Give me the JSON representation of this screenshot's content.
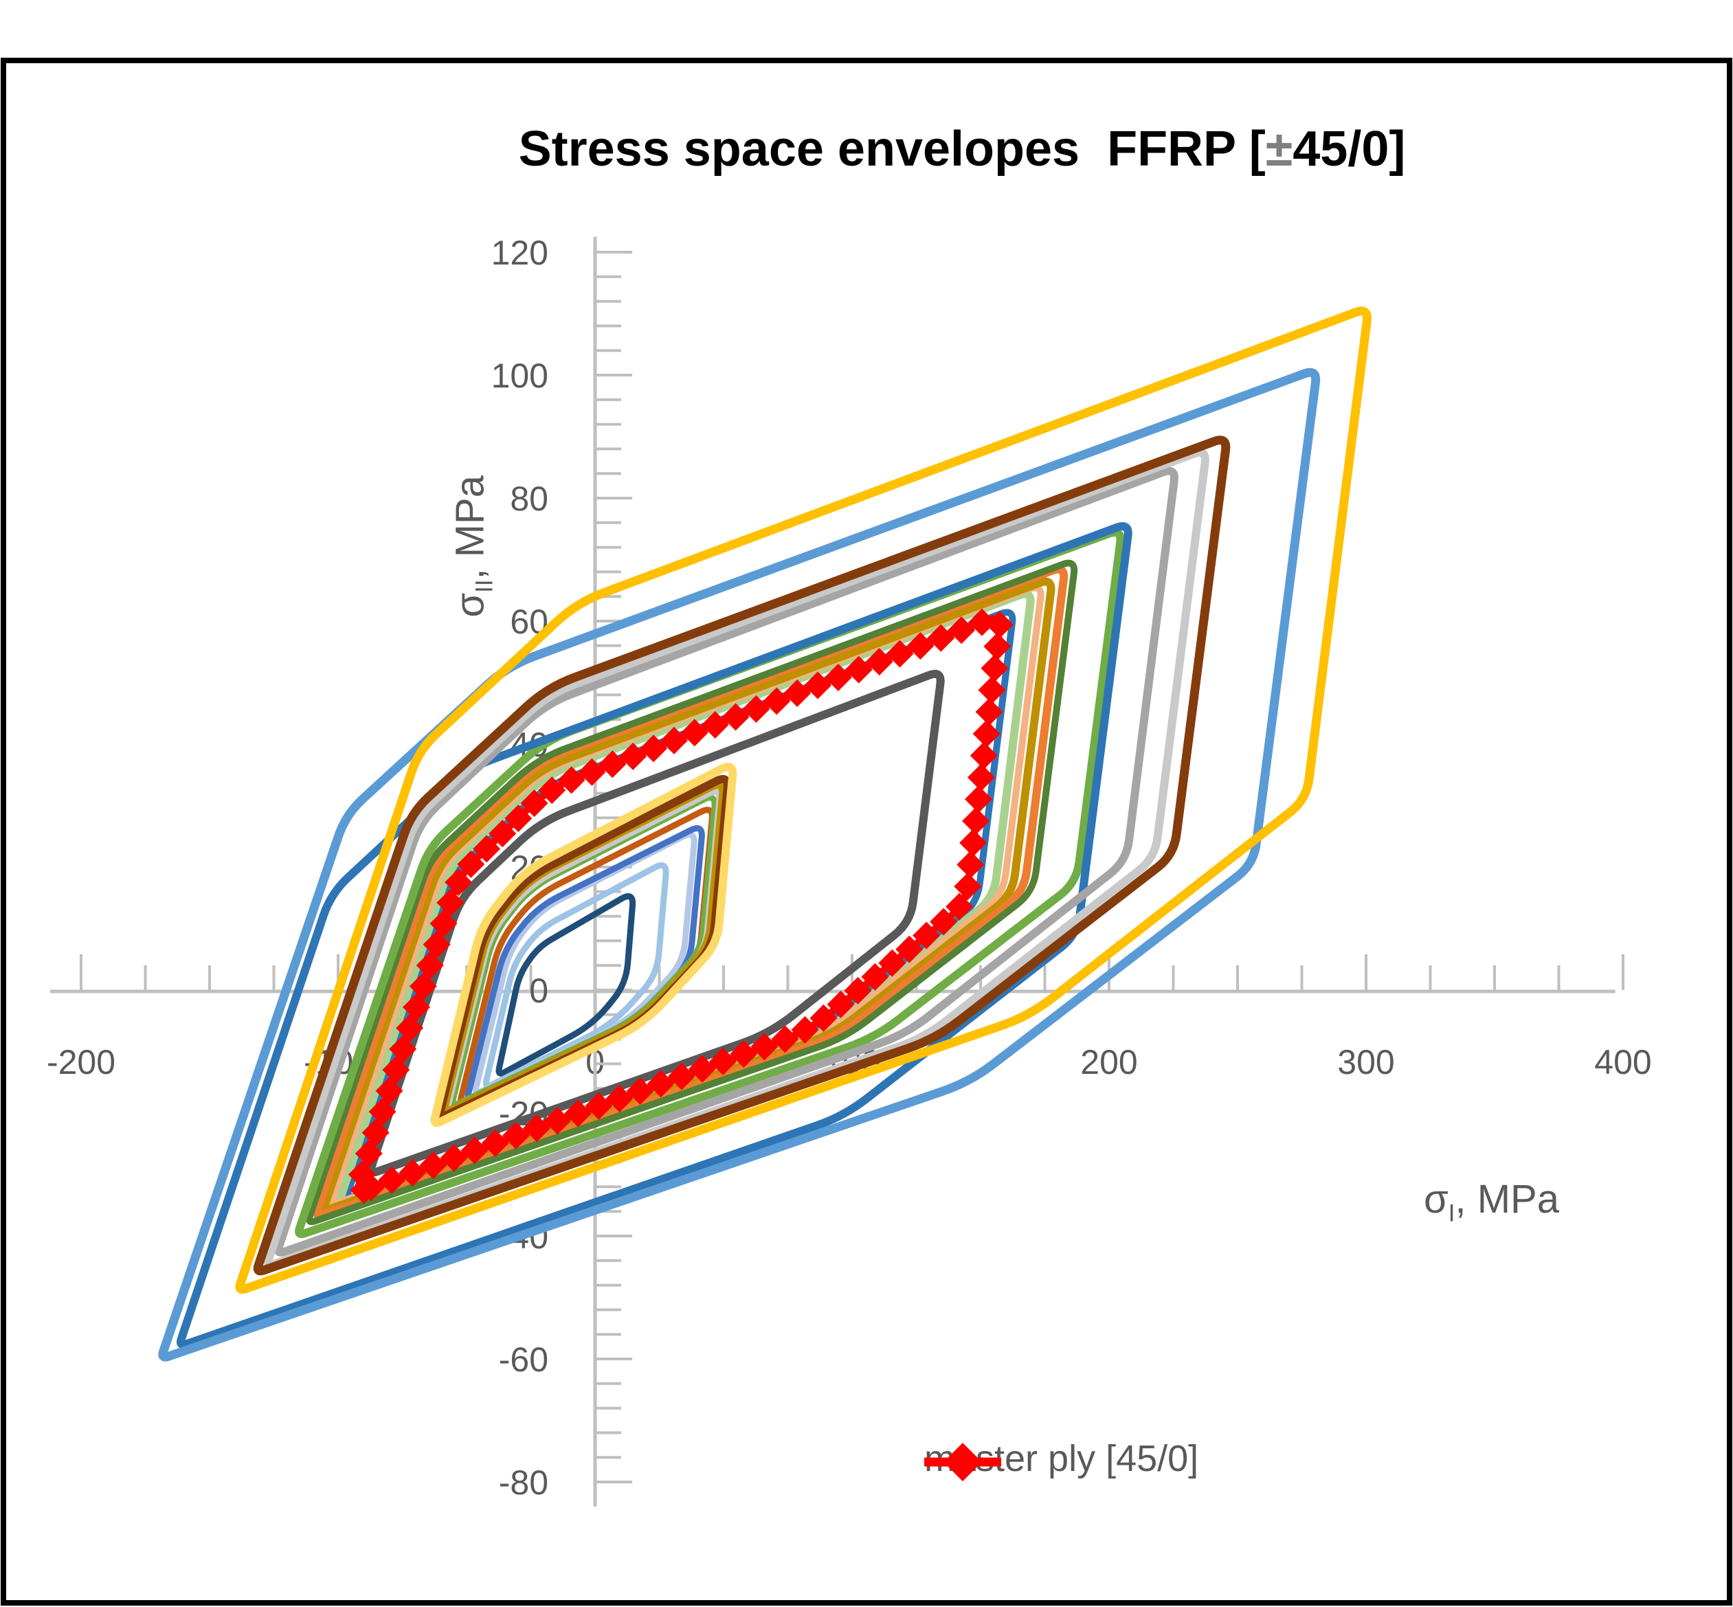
{
  "frame": {
    "color": "#000000"
  },
  "title": {
    "prefix": "Stress space envelopes  FFRP [",
    "plusminus": "±",
    "suffix": "45/0]"
  },
  "axes": {
    "x": {
      "sigma": "σ",
      "sub": "I",
      "rest": ", MPa",
      "min": -200,
      "max": 400,
      "major": 100,
      "minor": 25,
      "tick_labels": [
        "-200",
        "-100",
        "0",
        "100",
        "200",
        "300",
        "400"
      ],
      "label_color": "#595959",
      "line_color": "#BFBFBF"
    },
    "y": {
      "sigma": "σ",
      "sub": "II",
      "rest": ", MPa",
      "min": -80,
      "max": 120,
      "major": 20,
      "minor": 4,
      "tick_labels": [
        "120",
        "100",
        "80",
        "60",
        "40",
        "20",
        "0",
        "-20",
        "-40",
        "-60",
        "-80"
      ],
      "label_color": "#595959",
      "line_color": "#BFBFBF"
    }
  },
  "legend": {
    "label": "master ply [45/0]",
    "color": "#FF0000"
  },
  "chart_data": {
    "type": "line",
    "title": "Stress space envelopes FFRP [±45/0]",
    "xlabel": "σI, MPa",
    "ylabel": "σII, MPa",
    "xlim": [
      -200,
      400
    ],
    "ylim": [
      -80,
      120
    ],
    "grid": false,
    "legend_position": "bottom-right",
    "shape_fractions": {
      "k1": [
        0.16,
        0.55
      ],
      "s1": [
        0.3,
        0.7
      ],
      "k2": [
        0.055,
        0.5
      ],
      "s2": [
        0.3,
        0.72
      ]
    },
    "series": [
      {
        "id": "env-navy-sm",
        "color": "#1F4E79",
        "width": 9,
        "tip": [
          -38,
          -14
        ],
        "peak": [
          15,
          16
        ]
      },
      {
        "id": "env-sky-sm",
        "color": "#9DC3E6",
        "width": 9,
        "tip": [
          -43,
          -16
        ],
        "peak": [
          28,
          21
        ]
      },
      {
        "id": "env-paleblue-sm",
        "color": "#B4C7E7",
        "width": 9,
        "tip": [
          -47,
          -17
        ],
        "peak": [
          39,
          26
        ]
      },
      {
        "id": "env-royal-sm",
        "color": "#4472C4",
        "width": 9,
        "tip": [
          -50,
          -18
        ],
        "peak": [
          42,
          27
        ]
      },
      {
        "id": "env-rust-sm",
        "color": "#C55A11",
        "width": 9,
        "tip": [
          -53,
          -19
        ],
        "peak": [
          46,
          30
        ]
      },
      {
        "id": "env-green-sm",
        "color": "#70AD47",
        "width": 9,
        "tip": [
          -56,
          -19
        ],
        "peak": [
          47,
          32
        ]
      },
      {
        "id": "env-ltgray-sm",
        "color": "#C9C9C9",
        "width": 10,
        "tip": [
          -58,
          -20
        ],
        "peak": [
          49,
          33
        ]
      },
      {
        "id": "env-olive-sm",
        "color": "#BF9000",
        "width": 10,
        "tip": [
          -59,
          -20
        ],
        "peak": [
          50,
          34
        ]
      },
      {
        "id": "env-brown-sm",
        "color": "#843C0C",
        "width": 12,
        "tip": [
          -61,
          -21
        ],
        "peak": [
          52,
          35
        ]
      },
      {
        "id": "env-ltgold-sm",
        "color": "#FFD966",
        "width": 12,
        "tip": [
          -63,
          -22
        ],
        "peak": [
          54,
          37
        ]
      },
      {
        "id": "env-dkgray",
        "color": "#595959",
        "width": 12,
        "tip": [
          -88,
          -30
        ],
        "peak": [
          135,
          52
        ]
      },
      {
        "id": "env-medblue",
        "color": "#2E75B6",
        "width": 10,
        "tip": [
          -97,
          -34
        ],
        "peak": [
          163,
          62
        ]
      },
      {
        "id": "env-ltgreen",
        "color": "#A9D18E",
        "width": 12,
        "tip": [
          -100,
          -35
        ],
        "peak": [
          170,
          65
        ]
      },
      {
        "id": "env-ltorange",
        "color": "#F4B183",
        "width": 10,
        "tip": [
          -103,
          -35
        ],
        "peak": [
          174,
          66
        ]
      },
      {
        "id": "env-olive",
        "color": "#BF9000",
        "width": 12,
        "tip": [
          -106,
          -36
        ],
        "peak": [
          178,
          67
        ]
      },
      {
        "id": "env-orange",
        "color": "#ED7D31",
        "width": 12,
        "tip": [
          -109,
          -37
        ],
        "peak": [
          183,
          69
        ]
      },
      {
        "id": "env-dkgreen",
        "color": "#538135",
        "width": 10,
        "tip": [
          -112,
          -38
        ],
        "peak": [
          187,
          70
        ]
      },
      {
        "id": "env-green",
        "color": "#70AD47",
        "width": 12,
        "tip": [
          -116,
          -40
        ],
        "peak": [
          205,
          75
        ]
      },
      {
        "id": "env-medblue-lg",
        "color": "#2E75B6",
        "width": 12,
        "tip": [
          -162,
          -58
        ],
        "peak": [
          208,
          76
        ]
      },
      {
        "id": "env-gray",
        "color": "#A5A5A5",
        "width": 12,
        "tip": [
          -124,
          -43
        ],
        "peak": [
          226,
          85
        ]
      },
      {
        "id": "env-ltgray",
        "color": "#C9C9C9",
        "width": 12,
        "tip": [
          -128,
          -45
        ],
        "peak": [
          238,
          88
        ]
      },
      {
        "id": "env-brown",
        "color": "#843C0C",
        "width": 13,
        "tip": [
          -132,
          -46
        ],
        "peak": [
          246,
          90
        ]
      },
      {
        "id": "env-cornflower",
        "color": "#5B9BD5",
        "width": 13,
        "tip": [
          -169,
          -60
        ],
        "peak": [
          281,
          101
        ]
      },
      {
        "id": "env-gold",
        "color": "#FFC000",
        "width": 13,
        "tip": [
          -139,
          -49
        ],
        "peak": [
          301,
          111
        ]
      },
      {
        "id": "env-master-ply",
        "color": "#FF0000",
        "width": 10,
        "tip": [
          -93,
          -33
        ],
        "peak": [
          158,
          61
        ],
        "marker": "diamond",
        "label": "master ply [45/0]"
      }
    ]
  }
}
